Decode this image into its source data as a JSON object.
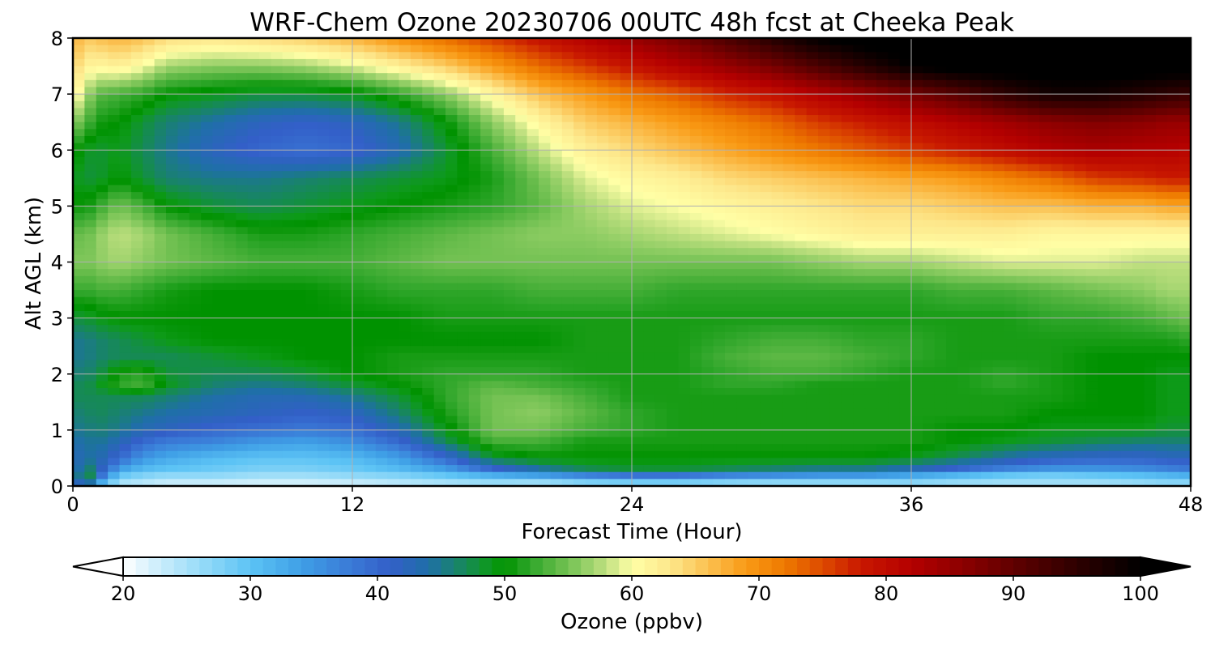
{
  "chart_data": {
    "type": "heatmap",
    "title": "WRF-Chem Ozone  20230706 00UTC 48h fcst at Cheeka Peak",
    "xlabel": "Forecast Time (Hour)",
    "ylabel": "Alt AGL (km)",
    "xlim": [
      0,
      48
    ],
    "ylim": [
      0,
      8
    ],
    "xticks": [
      0,
      12,
      24,
      36,
      48
    ],
    "yticks": [
      0,
      1,
      2,
      3,
      4,
      5,
      6,
      7,
      8
    ],
    "grid": true,
    "x": [
      0,
      0.5,
      1,
      2,
      3,
      4,
      6,
      8,
      10,
      12,
      14,
      16,
      18,
      20,
      22,
      24,
      26,
      28,
      30,
      32,
      34,
      36,
      38,
      40,
      42,
      44,
      46,
      47,
      48
    ],
    "y": [
      0,
      0.1,
      0.2,
      0.3,
      0.5,
      0.8,
      1,
      1.3,
      1.6,
      1.8,
      2,
      2.3,
      2.6,
      3,
      3.5,
      4,
      4.5,
      5,
      5.5,
      6,
      6.5,
      7,
      7.5,
      8
    ],
    "z": [
      [
        28,
        50,
        30,
        24,
        23,
        22,
        22,
        22,
        22,
        22,
        23,
        24,
        25,
        24,
        26,
        26,
        26,
        25,
        25,
        25,
        25,
        26,
        25,
        25,
        25,
        25,
        26,
        26,
        26
      ],
      [
        34,
        55,
        38,
        26,
        25,
        24,
        24,
        23,
        23,
        24,
        25,
        26,
        27,
        27,
        29,
        30,
        30,
        29,
        28,
        28,
        28,
        28,
        27,
        26,
        26,
        26,
        27,
        28,
        28
      ],
      [
        38,
        52,
        42,
        30,
        28,
        27,
        27,
        26,
        26,
        27,
        28,
        30,
        33,
        35,
        38,
        40,
        40,
        38,
        37,
        36,
        36,
        34,
        32,
        30,
        29,
        30,
        31,
        32,
        33
      ],
      [
        40,
        48,
        44,
        34,
        31,
        30,
        29,
        28,
        28,
        29,
        31,
        34,
        40,
        44,
        47,
        48,
        48,
        47,
        46,
        45,
        45,
        43,
        40,
        37,
        35,
        35,
        36,
        37,
        38
      ],
      [
        42,
        44,
        44,
        40,
        35,
        33,
        31,
        30,
        30,
        31,
        34,
        40,
        48,
        50,
        50,
        50,
        50,
        50,
        50,
        50,
        50,
        49,
        47,
        44,
        42,
        41,
        41,
        42,
        42
      ],
      [
        44,
        44,
        45,
        43,
        40,
        38,
        37,
        35,
        34,
        36,
        40,
        47,
        53,
        53,
        51,
        51,
        51,
        51,
        51,
        51,
        51,
        51,
        50,
        49,
        48,
        47,
        46,
        46,
        46
      ],
      [
        45,
        45,
        46,
        45,
        43,
        42,
        40,
        39,
        38,
        39,
        43,
        49,
        55,
        55,
        53,
        52,
        51,
        51,
        51,
        51,
        51,
        51,
        50,
        50,
        49,
        49,
        49,
        48,
        48
      ],
      [
        46,
        46,
        47,
        46,
        45,
        44,
        43,
        42,
        41,
        42,
        46,
        51,
        55,
        56,
        54,
        52,
        51,
        51,
        51,
        51,
        51,
        51,
        51,
        51,
        50,
        50,
        50,
        49,
        49
      ],
      [
        47,
        47,
        47,
        47,
        47,
        46,
        44,
        43,
        43,
        45,
        48,
        52,
        55,
        55,
        53,
        51,
        51,
        51,
        51,
        51,
        51,
        51,
        51,
        51,
        51,
        50,
        50,
        49,
        49
      ],
      [
        47,
        47,
        48,
        52,
        53,
        49,
        46,
        45,
        46,
        48,
        50,
        52,
        54,
        53,
        52,
        51,
        51,
        52,
        52,
        51,
        51,
        51,
        51,
        52,
        51,
        50,
        50,
        49,
        49
      ],
      [
        46,
        46,
        47,
        51,
        52,
        48,
        47,
        47,
        48,
        50,
        51,
        52,
        52,
        52,
        51,
        51,
        51,
        52,
        53,
        53,
        52,
        51,
        51,
        52,
        51,
        50,
        50,
        49,
        49
      ],
      [
        45,
        45,
        46,
        47,
        47,
        47,
        48,
        49,
        50,
        50,
        51,
        51,
        51,
        51,
        51,
        51,
        51,
        53,
        54,
        54,
        53,
        52,
        51,
        51,
        51,
        50,
        50,
        50,
        50
      ],
      [
        45,
        45,
        46,
        47,
        48,
        49,
        50,
        50,
        50,
        50,
        50,
        50,
        50,
        50,
        51,
        51,
        51,
        52,
        53,
        53,
        52,
        52,
        51,
        51,
        51,
        51,
        51,
        51,
        52
      ],
      [
        48,
        48,
        49,
        50,
        50,
        50,
        50,
        50,
        50,
        50,
        50,
        51,
        51,
        51,
        51,
        51,
        51,
        51,
        51,
        51,
        51,
        51,
        51,
        51,
        52,
        52,
        53,
        54,
        55
      ],
      [
        53,
        52,
        53,
        53,
        52,
        51,
        50,
        50,
        50,
        51,
        52,
        52,
        52,
        53,
        53,
        53,
        52,
        52,
        52,
        52,
        52,
        52,
        53,
        53,
        54,
        55,
        56,
        57,
        57
      ],
      [
        56,
        55,
        56,
        57,
        56,
        55,
        54,
        53,
        53,
        53,
        54,
        55,
        55,
        55,
        55,
        55,
        55,
        55,
        55,
        56,
        57,
        57,
        58,
        59,
        59,
        59,
        58,
        58,
        58
      ],
      [
        55,
        54,
        56,
        58,
        57,
        55,
        53,
        51,
        51,
        52,
        53,
        54,
        55,
        56,
        56,
        57,
        58,
        59,
        60,
        61,
        62,
        62,
        62,
        62,
        61,
        61,
        61,
        61,
        61
      ],
      [
        51,
        50,
        52,
        55,
        53,
        50,
        48,
        47,
        48,
        49,
        50,
        51,
        52,
        54,
        57,
        59,
        60,
        61,
        62,
        63,
        64,
        64,
        65,
        66,
        66,
        67,
        67,
        68,
        68
      ],
      [
        49,
        48,
        48,
        50,
        48,
        46,
        45,
        45,
        46,
        47,
        48,
        49,
        51,
        55,
        59,
        61,
        62,
        64,
        65,
        66,
        67,
        68,
        69,
        71,
        73,
        76,
        77,
        78,
        78
      ],
      [
        51,
        49,
        48,
        49,
        47,
        45,
        42,
        40,
        39,
        40,
        43,
        48,
        53,
        58,
        62,
        64,
        66,
        68,
        70,
        72,
        74,
        76,
        78,
        80,
        82,
        83,
        82,
        82,
        81
      ],
      [
        56,
        54,
        51,
        50,
        48,
        46,
        44,
        42,
        41,
        42,
        45,
        50,
        56,
        61,
        65,
        67,
        69,
        71,
        73,
        76,
        78,
        80,
        82,
        84,
        86,
        87,
        86,
        85,
        85
      ],
      [
        62,
        58,
        54,
        53,
        52,
        50,
        49,
        48,
        48,
        49,
        52,
        56,
        61,
        66,
        69,
        72,
        74,
        77,
        79,
        82,
        85,
        88,
        91,
        95,
        98,
        98,
        96,
        95,
        94
      ],
      [
        65,
        62,
        61,
        62,
        60,
        57,
        56,
        56,
        57,
        59,
        62,
        65,
        69,
        73,
        76,
        79,
        82,
        85,
        88,
        92,
        96,
        100,
        102,
        102,
        102,
        102,
        102,
        102,
        102
      ],
      [
        68,
        65,
        66,
        67,
        66,
        64,
        63,
        64,
        65,
        67,
        70,
        73,
        76,
        79,
        82,
        85,
        88,
        92,
        96,
        100,
        102,
        102,
        102,
        102,
        102,
        102,
        102,
        102,
        102
      ]
    ],
    "colorbar": {
      "label": "Ozone  (ppbv)",
      "min": 20,
      "max": 100,
      "ticks": [
        20,
        30,
        40,
        50,
        60,
        70,
        80,
        90,
        100
      ],
      "extend": "both",
      "stops": [
        [
          20,
          "#ffffff"
        ],
        [
          22,
          "#d9f2fc"
        ],
        [
          26,
          "#99dcf8"
        ],
        [
          30,
          "#5cc3f5"
        ],
        [
          34,
          "#3f9fe6"
        ],
        [
          38,
          "#3a79d6"
        ],
        [
          41,
          "#335fc8"
        ],
        [
          44,
          "#1f6fa8"
        ],
        [
          47,
          "#168a55"
        ],
        [
          49,
          "#0d9a18"
        ],
        [
          50,
          "#009200"
        ],
        [
          52,
          "#2fa62a"
        ],
        [
          54,
          "#5db845"
        ],
        [
          56,
          "#8ccc62"
        ],
        [
          58,
          "#c0e080"
        ],
        [
          60,
          "#ffffa6"
        ],
        [
          63,
          "#fde78b"
        ],
        [
          66,
          "#fbc050"
        ],
        [
          69,
          "#f99a15"
        ],
        [
          72,
          "#ee7a00"
        ],
        [
          75,
          "#dd4a00"
        ],
        [
          78,
          "#c81800"
        ],
        [
          82,
          "#b40000"
        ],
        [
          86,
          "#8c0000"
        ],
        [
          90,
          "#600000"
        ],
        [
          95,
          "#2e0000"
        ],
        [
          100,
          "#000000"
        ]
      ]
    }
  }
}
